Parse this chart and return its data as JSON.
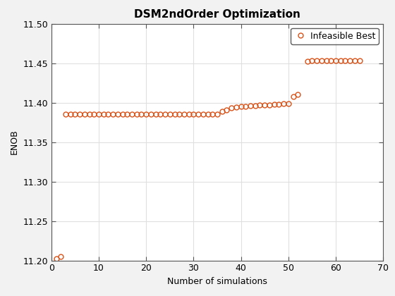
{
  "title": "DSM2ndOrder Optimization",
  "xlabel": "Number of simulations",
  "ylabel": "ENOB",
  "xlim": [
    0,
    70
  ],
  "ylim": [
    11.2,
    11.5
  ],
  "yticks": [
    11.2,
    11.25,
    11.3,
    11.35,
    11.4,
    11.45,
    11.5
  ],
  "xticks": [
    0,
    10,
    20,
    30,
    40,
    50,
    60,
    70
  ],
  "marker_color": "#D95319",
  "marker": "o",
  "markersize": 5,
  "legend_label": "Infeasible Best",
  "background_color": "#f2f2f2",
  "axes_background": "#ffffff",
  "title_fontsize": 11,
  "label_fontsize": 9,
  "tick_fontsize": 9,
  "legend_fontsize": 9,
  "x_data": [
    1,
    2,
    3,
    4,
    5,
    6,
    7,
    8,
    9,
    10,
    11,
    12,
    13,
    14,
    15,
    16,
    17,
    18,
    19,
    20,
    21,
    22,
    23,
    24,
    25,
    26,
    27,
    28,
    29,
    30,
    31,
    32,
    33,
    34,
    35,
    36,
    37,
    38,
    39,
    40,
    41,
    42,
    43,
    44,
    45,
    46,
    47,
    48,
    49,
    50,
    51,
    52,
    54,
    55,
    56,
    57,
    58,
    59,
    60,
    61,
    62,
    63,
    64,
    65
  ],
  "y_data": [
    11.202,
    11.205,
    11.385,
    11.385,
    11.385,
    11.385,
    11.385,
    11.385,
    11.385,
    11.385,
    11.385,
    11.385,
    11.385,
    11.385,
    11.385,
    11.385,
    11.385,
    11.385,
    11.385,
    11.385,
    11.385,
    11.385,
    11.385,
    11.385,
    11.385,
    11.385,
    11.385,
    11.385,
    11.385,
    11.385,
    11.385,
    11.385,
    11.385,
    11.385,
    11.385,
    11.389,
    11.391,
    11.393,
    11.394,
    11.395,
    11.395,
    11.396,
    11.396,
    11.397,
    11.397,
    11.397,
    11.398,
    11.398,
    11.399,
    11.399,
    11.408,
    11.41,
    11.452,
    11.453,
    11.453,
    11.453,
    11.453,
    11.453,
    11.453,
    11.453,
    11.453,
    11.453,
    11.453,
    11.453
  ]
}
